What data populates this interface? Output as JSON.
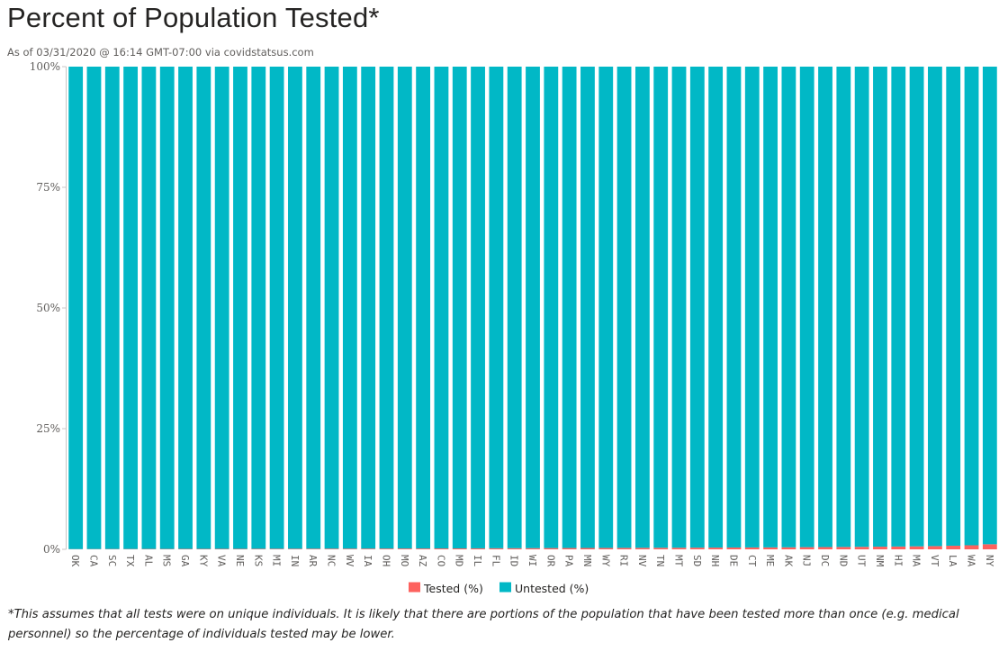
{
  "header": {
    "title": "Percent of Population Tested*",
    "subtitle": "As of 03/31/2020 @ 16:14 GMT-07:00 via covidstatsus.com"
  },
  "footnote": "*This assumes that all tests were on unique individuals. It is likely that there are portions of the population that have been tested more than once (e.g. medical personnel) so the percentage of individuals tested may be lower.",
  "colors": {
    "tested": "#fd625e",
    "untested": "#01b8c6"
  },
  "chart_data": {
    "type": "bar",
    "stacked": true,
    "orientation": "vertical",
    "categories": [
      "OK",
      "CA",
      "SC",
      "TX",
      "AL",
      "MS",
      "GA",
      "KY",
      "VA",
      "NE",
      "KS",
      "MI",
      "IN",
      "AR",
      "NC",
      "WV",
      "IA",
      "OH",
      "MO",
      "AZ",
      "CO",
      "MD",
      "IL",
      "FL",
      "ID",
      "WI",
      "OR",
      "PA",
      "MN",
      "WY",
      "RI",
      "NV",
      "TN",
      "MT",
      "SD",
      "NH",
      "DE",
      "CT",
      "ME",
      "AK",
      "NJ",
      "DC",
      "ND",
      "UT",
      "NM",
      "HI",
      "MA",
      "VT",
      "LA",
      "WA",
      "NY"
    ],
    "series": [
      {
        "name": "Tested (%)",
        "values": [
          0.05,
          0.06,
          0.07,
          0.07,
          0.08,
          0.08,
          0.09,
          0.09,
          0.1,
          0.1,
          0.11,
          0.12,
          0.12,
          0.13,
          0.14,
          0.14,
          0.15,
          0.16,
          0.17,
          0.17,
          0.18,
          0.19,
          0.2,
          0.22,
          0.23,
          0.24,
          0.26,
          0.27,
          0.28,
          0.29,
          0.3,
          0.31,
          0.32,
          0.33,
          0.35,
          0.36,
          0.38,
          0.39,
          0.4,
          0.42,
          0.45,
          0.47,
          0.49,
          0.52,
          0.55,
          0.58,
          0.62,
          0.67,
          0.75,
          0.84,
          1.05
        ]
      },
      {
        "name": "Untested (%)",
        "values": [
          99.95,
          99.94,
          99.93,
          99.93,
          99.92,
          99.92,
          99.91,
          99.91,
          99.9,
          99.9,
          99.89,
          99.88,
          99.88,
          99.87,
          99.86,
          99.86,
          99.85,
          99.84,
          99.83,
          99.83,
          99.82,
          99.81,
          99.8,
          99.78,
          99.77,
          99.76,
          99.74,
          99.73,
          99.72,
          99.71,
          99.7,
          99.69,
          99.68,
          99.67,
          99.65,
          99.64,
          99.62,
          99.61,
          99.6,
          99.58,
          99.55,
          99.53,
          99.51,
          99.48,
          99.45,
          99.42,
          99.38,
          99.33,
          99.25,
          99.16,
          98.95
        ]
      }
    ],
    "ylim": [
      0,
      100
    ],
    "yticks": [
      "0%",
      "25%",
      "50%",
      "75%",
      "100%"
    ],
    "legend_position": "bottom-center",
    "grid": false
  }
}
